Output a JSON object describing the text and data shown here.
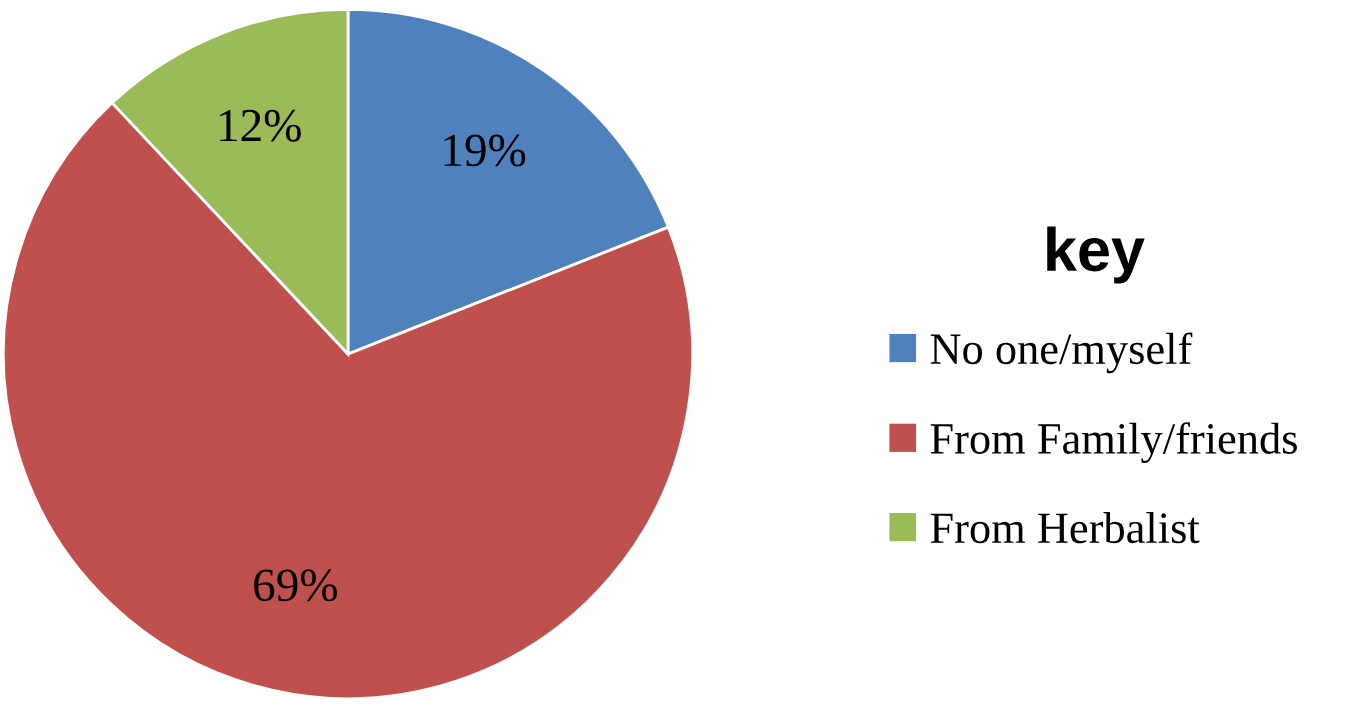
{
  "chart_data": {
    "type": "pie",
    "legend_title": "key",
    "legend": "right",
    "categories": [
      "No one/myself",
      "From Family/friends",
      "From Herbalist"
    ],
    "values": [
      19,
      69,
      12
    ],
    "colors": [
      "#4f81bd",
      "#c0504d",
      "#9bbb59"
    ],
    "value_labels": [
      "19%",
      "69%",
      "12%"
    ]
  }
}
